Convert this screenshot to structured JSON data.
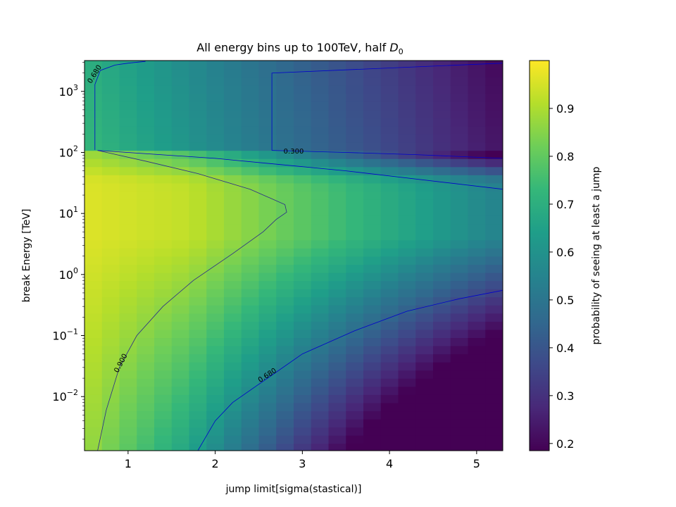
{
  "chart_data": {
    "type": "heatmap",
    "title": "All energy bins up to 100TeV, half ",
    "title_symbol": "D",
    "title_subscript": "0",
    "xlabel": "jump limit[sigma(stastical)]",
    "ylabel": "break Energy [TeV]",
    "colorbar_label": "probability of seeing at least a jump",
    "colormap": "viridis",
    "x_range": [
      0.5,
      5.3
    ],
    "y_range": [
      0.0013,
      3200
    ],
    "y_scale": "log",
    "color_range": [
      0.185,
      1.0
    ],
    "x_ticks": [
      {
        "value": 1,
        "label": "1"
      },
      {
        "value": 2,
        "label": "2"
      },
      {
        "value": 3,
        "label": "3"
      },
      {
        "value": 4,
        "label": "4"
      },
      {
        "value": 5,
        "label": "5"
      }
    ],
    "y_ticks": [
      {
        "exp": -2,
        "base": "10",
        "sup": "−2"
      },
      {
        "exp": -1,
        "base": "10",
        "sup": "−1"
      },
      {
        "exp": 0,
        "base": "10",
        "sup": "0"
      },
      {
        "exp": 1,
        "base": "10",
        "sup": "1"
      },
      {
        "exp": 2,
        "base": "10",
        "sup": "2"
      },
      {
        "exp": 3,
        "base": "10",
        "sup": "3"
      }
    ],
    "colorbar_ticks": [
      {
        "value": 0.2,
        "label": "0.2"
      },
      {
        "value": 0.3,
        "label": "0.3"
      },
      {
        "value": 0.4,
        "label": "0.4"
      },
      {
        "value": 0.5,
        "label": "0.5"
      },
      {
        "value": 0.6,
        "label": "0.6"
      },
      {
        "value": 0.7,
        "label": "0.7"
      },
      {
        "value": 0.8,
        "label": "0.8"
      },
      {
        "value": 0.9,
        "label": "0.9"
      }
    ],
    "heatmap_grid": {
      "x_min": 0.5,
      "x_max": 5.3,
      "x_columns": 24,
      "log_y_min": -2.9,
      "log_y_max": 3.5,
      "y_rows": 48
    },
    "contours": [
      {
        "level": 0.68,
        "label": "0.680",
        "color": "#0000cc",
        "points": [
          [
            1.8,
            0.0013
          ],
          [
            2.0,
            0.004
          ],
          [
            2.2,
            0.008
          ],
          [
            2.6,
            0.02
          ],
          [
            3.0,
            0.05
          ],
          [
            3.6,
            0.12
          ],
          [
            4.2,
            0.25
          ],
          [
            4.8,
            0.4
          ],
          [
            5.3,
            0.55
          ]
        ]
      },
      {
        "level": 0.9,
        "label": "0.900",
        "color": "#2a2a8a",
        "points": [
          [
            0.65,
            0.0013
          ],
          [
            0.75,
            0.006
          ],
          [
            0.9,
            0.03
          ],
          [
            1.1,
            0.1
          ],
          [
            1.4,
            0.3
          ],
          [
            1.75,
            0.8
          ],
          [
            2.2,
            2.2
          ],
          [
            2.55,
            5
          ],
          [
            2.7,
            8
          ],
          [
            2.82,
            10.5
          ],
          [
            2.8,
            14
          ],
          [
            2.4,
            25
          ],
          [
            1.8,
            45
          ],
          [
            1.2,
            72
          ],
          [
            0.65,
            108
          ]
        ]
      },
      {
        "level": 0.3,
        "label": "0.300",
        "color": "#0000cc",
        "points": [
          [
            2.65,
            108
          ],
          [
            3.5,
            100
          ],
          [
            4.3,
            92
          ],
          [
            5.3,
            80
          ]
        ]
      },
      {
        "level": 0.68,
        "label": "0.680",
        "color": "#0000cc",
        "points": [
          [
            0.62,
            110
          ],
          [
            0.62,
            1300
          ],
          [
            0.68,
            2200
          ],
          [
            0.85,
            2700
          ],
          [
            1.0,
            2900
          ],
          [
            1.2,
            3100
          ]
        ]
      },
      {
        "level": 0.3,
        "label": "",
        "color": "#0000cc",
        "points": [
          [
            2.65,
            108
          ],
          [
            2.65,
            2000
          ],
          [
            5.3,
            2900
          ]
        ]
      },
      {
        "level": 0.5,
        "label": "",
        "color": "#0000cc",
        "points": [
          [
            0.65,
            108
          ],
          [
            2.0,
            80
          ],
          [
            3.5,
            50
          ],
          [
            5.3,
            25
          ]
        ]
      }
    ]
  }
}
